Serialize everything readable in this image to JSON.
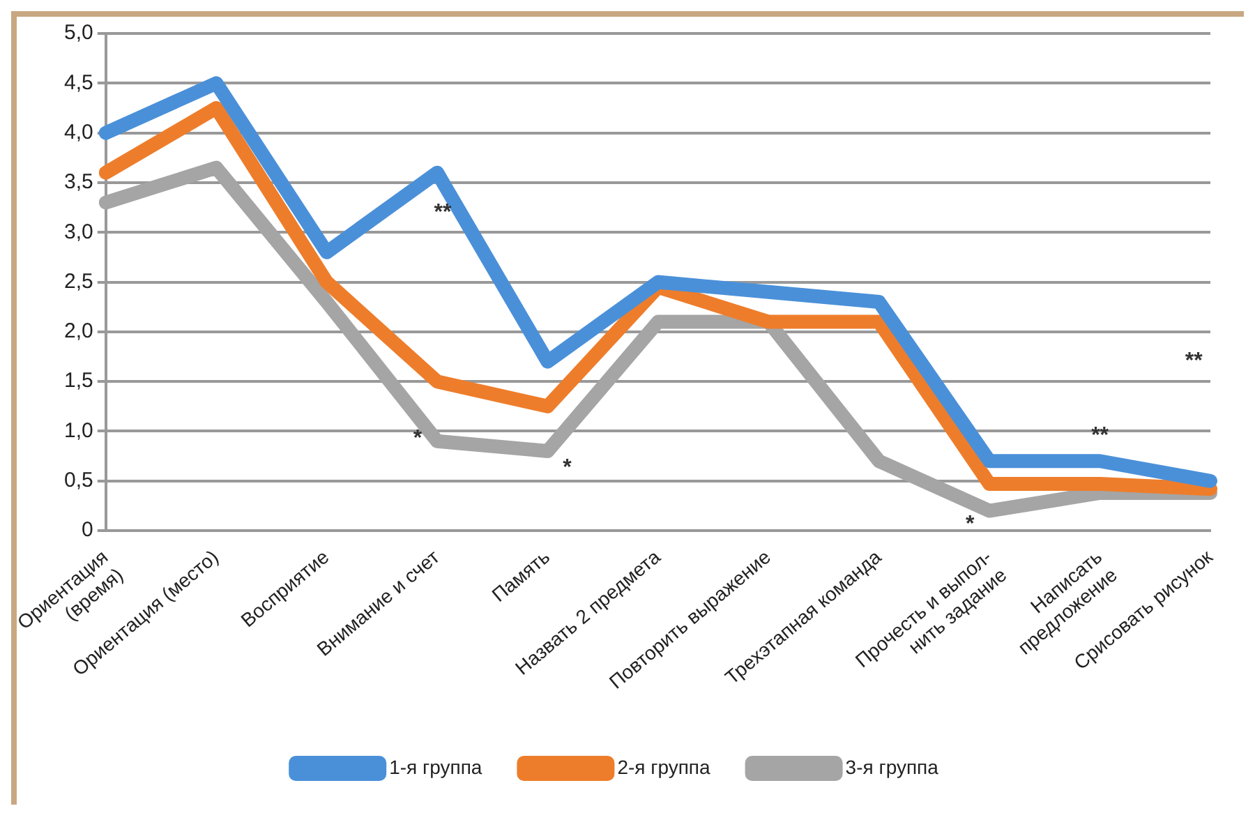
{
  "chart_data": {
    "type": "line",
    "categories": [
      "Ориентация\n(время)",
      "Ориентация (место)",
      "Восприятие",
      "Внимание и счет",
      "Память",
      "Назвать 2 предмета",
      "Повторить выражение",
      "Трехэтапная команда",
      "Прочесть и выпол-\nнить задание",
      "Написать\nпредложение",
      "Срисовать рисунок"
    ],
    "series": [
      {
        "name": "1-я группа",
        "color": "#4a90d9",
        "values": [
          4.0,
          4.5,
          2.8,
          3.6,
          1.7,
          2.5,
          2.4,
          2.3,
          0.7,
          0.7,
          0.5
        ]
      },
      {
        "name": "2-я группа",
        "color": "#ee7d2b",
        "values": [
          3.6,
          4.25,
          2.5,
          1.5,
          1.25,
          2.45,
          2.1,
          2.1,
          0.47,
          0.47,
          0.42
        ]
      },
      {
        "name": "3-я группа",
        "color": "#a5a5a5",
        "values": [
          3.3,
          3.65,
          2.3,
          0.9,
          0.8,
          2.1,
          2.1,
          0.7,
          0.2,
          0.38,
          0.38
        ]
      }
    ],
    "ylim": [
      0,
      5
    ],
    "yticks": [
      {
        "value": 0,
        "label": "0"
      },
      {
        "value": 0.5,
        "label": "0,5"
      },
      {
        "value": 1,
        "label": "1,0"
      },
      {
        "value": 1.5,
        "label": "1,5"
      },
      {
        "value": 2,
        "label": "2,0"
      },
      {
        "value": 2.5,
        "label": "2,5"
      },
      {
        "value": 3,
        "label": "3,0"
      },
      {
        "value": 3.5,
        "label": "3,5"
      },
      {
        "value": 4,
        "label": "4,0"
      },
      {
        "value": 4.5,
        "label": "4,5"
      },
      {
        "value": 5,
        "label": "5,0"
      }
    ],
    "annotations": [
      "**",
      {
        "text": "*",
        "x": "Внимание и счет",
        "y": 0.9
      },
      {
        "text": "*",
        "x": "Память",
        "y": 0.8
      },
      {
        "text": "*",
        "x": "Прочесть и выпол-\nнить задание",
        "y": 0.2
      },
      {
        "text": "**",
        "x": "Написать\nпредложение",
        "y": 0.7
      },
      "**"
    ],
    "grid": "y",
    "legend": "bottom",
    "marker": "none",
    "line_style": "solid"
  }
}
